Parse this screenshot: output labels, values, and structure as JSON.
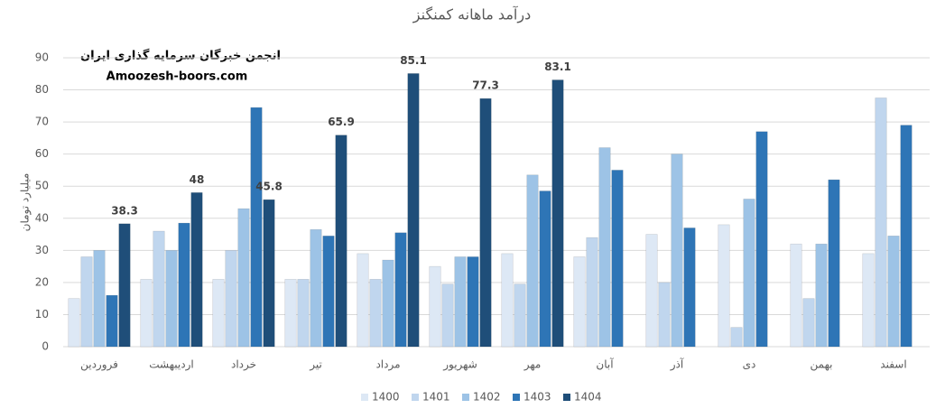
{
  "chart_data": {
    "type": "bar",
    "title": "درآمد ماهانه کمنگنز",
    "y_label": "میلیارد تومان",
    "annotations": [
      "انجمن خبرگان سرمایه گذاری ایران",
      "Amoozesh-boors.com"
    ],
    "categories": [
      "فروردین",
      "اردیبهشت",
      "خرداد",
      "تیر",
      "مرداد",
      "شهریور",
      "مهر",
      "آبان",
      "آذر",
      "دی",
      "بهمن",
      "اسفند"
    ],
    "series": [
      {
        "name": "1400",
        "color": "#dde8f5",
        "values": [
          15,
          21,
          21,
          21,
          29,
          25,
          29,
          28,
          35,
          38,
          32,
          29
        ]
      },
      {
        "name": "1401",
        "color": "#c0d6ee",
        "values": [
          28,
          36,
          30,
          21,
          21,
          19.5,
          19.5,
          34,
          20,
          6,
          15,
          77.5
        ]
      },
      {
        "name": "1402",
        "color": "#9dc3e6",
        "values": [
          30,
          30,
          43,
          36.5,
          27,
          28,
          53.5,
          62,
          60,
          46,
          32,
          34.5
        ]
      },
      {
        "name": "1403",
        "color": "#2e75b6",
        "values": [
          16,
          38.5,
          74.5,
          34.5,
          35.5,
          28,
          48.5,
          55,
          37,
          67,
          52,
          69
        ]
      },
      {
        "name": "1404",
        "color": "#1f4e79",
        "data_labels": true,
        "values": [
          38.3,
          48,
          45.8,
          65.9,
          85.1,
          77.3,
          83.1,
          null,
          null,
          null,
          null,
          null
        ]
      }
    ],
    "ylim": [
      0,
      90
    ],
    "yticks": [
      0,
      10,
      20,
      30,
      40,
      50,
      60,
      70,
      80,
      90
    ],
    "grid": true,
    "legend": "bottom"
  }
}
